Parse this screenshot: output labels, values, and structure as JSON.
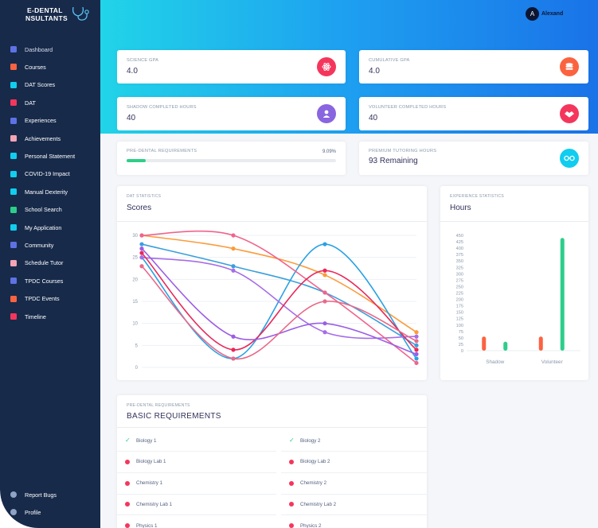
{
  "app": {
    "logo_line1": "E-DENTAL",
    "logo_line2": "NSULTANTS",
    "user_initial": "A",
    "user_name": "Alexand"
  },
  "sidebar": {
    "items": [
      {
        "label": "Dashboard",
        "icon": "monitor-icon",
        "color": "#5e72e4"
      },
      {
        "label": "Courses",
        "icon": "books-icon",
        "color": "#fb6340"
      },
      {
        "label": "DAT Scores",
        "icon": "edit-icon",
        "color": "#11cdef"
      },
      {
        "label": "DAT",
        "icon": "books-icon",
        "color": "#f5365c"
      },
      {
        "label": "Experiences",
        "icon": "planet-icon",
        "color": "#5e72e4"
      },
      {
        "label": "Achievements",
        "icon": "badge-icon",
        "color": "#f3a4b5"
      },
      {
        "label": "Personal Statement",
        "icon": "book-icon",
        "color": "#11cdef"
      },
      {
        "label": "COVID-19 Impact",
        "icon": "book-icon",
        "color": "#11cdef"
      },
      {
        "label": "Manual Dexterity",
        "icon": "book-icon",
        "color": "#11cdef"
      },
      {
        "label": "School Search",
        "icon": "building-icon",
        "color": "#2dce89"
      },
      {
        "label": "My Application",
        "icon": "list-icon",
        "color": "#11cdef"
      },
      {
        "label": "Community",
        "icon": "globe-icon",
        "color": "#5e72e4"
      },
      {
        "label": "Schedule Tutor",
        "icon": "calendar-icon",
        "color": "#f3a4b5"
      },
      {
        "label": "TPDC Courses",
        "icon": "books-icon",
        "color": "#5e72e4"
      },
      {
        "label": "TPDC Events",
        "icon": "calendar-icon",
        "color": "#fb6340"
      },
      {
        "label": "Timeline",
        "icon": "align-icon",
        "color": "#f5365c"
      }
    ],
    "bottom": [
      {
        "label": "Report Bugs",
        "icon": "bug-icon"
      },
      {
        "label": "Profile",
        "icon": "user-icon"
      }
    ]
  },
  "stats": [
    {
      "title": "SCIENCE GPA",
      "value": "4.0",
      "icon": "atom-icon",
      "color": "#f5365c"
    },
    {
      "title": "CUMULATIVE GPA",
      "value": "4.0",
      "icon": "coins-icon",
      "color": "#fb6340"
    },
    {
      "title": "SHADOW COMPLETED HOURS",
      "value": "40",
      "icon": "user-icon",
      "color": "#8965e0"
    },
    {
      "title": "VOLUNTEER COMPLETED HOURS",
      "value": "40",
      "icon": "handshake-icon",
      "color": "#f5365c"
    }
  ],
  "predental": {
    "title": "PRE-DENTAL REQUIREMENTS",
    "percent_label": "9.09%",
    "progress": 0.0909,
    "color": "#2dce89"
  },
  "tutoring": {
    "title": "PREMIUM TUTORING HOURS",
    "value": "93 Remaining",
    "icon": "glasses-icon",
    "color": "#11cdef"
  },
  "dat": {
    "overline": "DAT STATISTICS",
    "heading": "Scores"
  },
  "experience": {
    "overline": "EXPERIENCE STATISTICS",
    "heading": "Hours"
  },
  "requirements": {
    "overline": "PRE-DENTAL REQUIREMENTS",
    "heading": "BASIC REQUIREMENTS",
    "left": [
      {
        "label": "Biology 1",
        "done": true
      },
      {
        "label": "Biology Lab 1",
        "done": false
      },
      {
        "label": "Chemistry 1",
        "done": false
      },
      {
        "label": "Chemistry Lab 1",
        "done": false
      },
      {
        "label": "Physics 1",
        "done": false
      }
    ],
    "right": [
      {
        "label": "Biology 2",
        "done": true
      },
      {
        "label": "Biology Lab 2",
        "done": false
      },
      {
        "label": "Chemistry 2",
        "done": false
      },
      {
        "label": "Chemistry Lab 2",
        "done": false
      },
      {
        "label": "Physics 2",
        "done": false
      }
    ]
  },
  "chart_data": [
    {
      "type": "line",
      "ylim": [
        0,
        30
      ],
      "yticks": [
        0,
        5,
        10,
        15,
        20,
        25,
        30
      ],
      "x": [
        0,
        1,
        2,
        3
      ],
      "grid": true,
      "series": [
        {
          "color": "#fb9b3c",
          "values": [
            30,
            27,
            21,
            8
          ]
        },
        {
          "color": "#3a9fdc",
          "values": [
            28,
            23,
            17,
            5
          ]
        },
        {
          "color": "#2aa1e3",
          "values": [
            25,
            2,
            28,
            2
          ]
        },
        {
          "color": "#a66de8",
          "values": [
            25,
            22,
            8,
            7
          ]
        },
        {
          "color": "#f0648c",
          "values": [
            30,
            30,
            17,
            1
          ]
        },
        {
          "color": "#e8285a",
          "values": [
            26,
            4,
            22,
            4
          ]
        },
        {
          "color": "#9b5de5",
          "values": [
            27,
            7,
            10,
            3
          ]
        },
        {
          "color": "#e86a8a",
          "values": [
            23,
            2,
            15,
            6
          ]
        }
      ]
    },
    {
      "type": "bar",
      "categories": [
        "Shadow",
        "Volunteer"
      ],
      "ylim": [
        0,
        450
      ],
      "yticks": [
        0,
        25,
        50,
        75,
        100,
        125,
        150,
        175,
        200,
        225,
        250,
        275,
        300,
        325,
        350,
        375,
        400,
        425,
        450
      ],
      "series": [
        {
          "color": "#fb6340",
          "values": [
            55,
            55
          ]
        },
        {
          "color": "#2dce89",
          "values": [
            35,
            440
          ]
        }
      ]
    }
  ]
}
